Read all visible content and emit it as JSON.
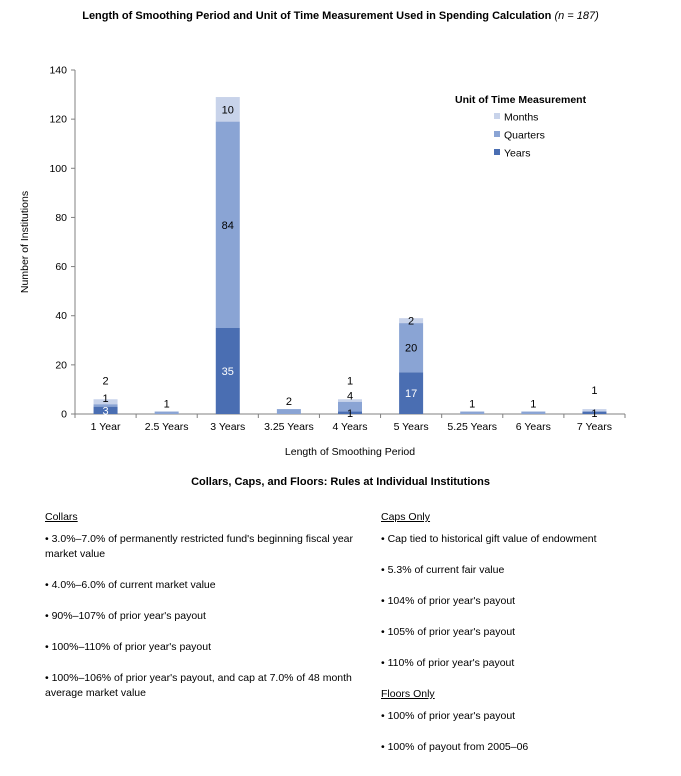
{
  "chart_title": {
    "main": "Length of Smoothing Period and Unit of Time Measurement Used in Spending Calculation",
    "n": "(n = 187)"
  },
  "chart_data": {
    "type": "bar",
    "stacked": true,
    "categories": [
      "1 Year",
      "2.5 Years",
      "3 Years",
      "3.25 Years",
      "4 Years",
      "5 Years",
      "5.25 Years",
      "6 Years",
      "7 Years"
    ],
    "series": [
      {
        "name": "Years",
        "color": "#4a6eb2",
        "values": [
          3,
          0,
          35,
          0,
          1,
          17,
          0,
          0,
          1
        ]
      },
      {
        "name": "Quarters",
        "color": "#8aa4d4",
        "values": [
          1,
          1,
          84,
          2,
          4,
          20,
          1,
          1,
          0
        ]
      },
      {
        "name": "Months",
        "color": "#c8d3ea",
        "values": [
          2,
          0,
          10,
          0,
          1,
          2,
          0,
          0,
          1
        ]
      }
    ],
    "xlabel": "Length of Smoothing Period",
    "ylabel": "Number of Institutions",
    "ylim": [
      0,
      140
    ],
    "yticks": [
      0,
      20,
      40,
      60,
      80,
      100,
      120,
      140
    ],
    "legend_title": "Unit of Time Measurement",
    "legend_position": "top-right",
    "grid": false
  },
  "section_title": "Collars, Caps, and Floors: Rules at Individual Institutions",
  "collars": {
    "heading": "Collars",
    "items": [
      "• 3.0%–7.0% of permanently restricted fund's beginning fiscal year market value",
      "• 4.0%–6.0% of current market value",
      "• 90%–107% of prior year's payout",
      "• 100%–110% of prior year's payout",
      "• 100%–106% of prior year's payout, and cap at 7.0% of 48 month average market value"
    ]
  },
  "caps": {
    "heading": "Caps Only",
    "items": [
      "• Cap tied to historical gift value of endowment",
      "• 5.3% of current fair value",
      "• 104% of prior year's payout",
      "• 105% of prior year's payout",
      "• 110% of prior year's payout"
    ]
  },
  "floors": {
    "heading": "Floors Only",
    "items": [
      "• 100% of prior year's payout",
      "• 100% of payout from 2005–06"
    ]
  }
}
